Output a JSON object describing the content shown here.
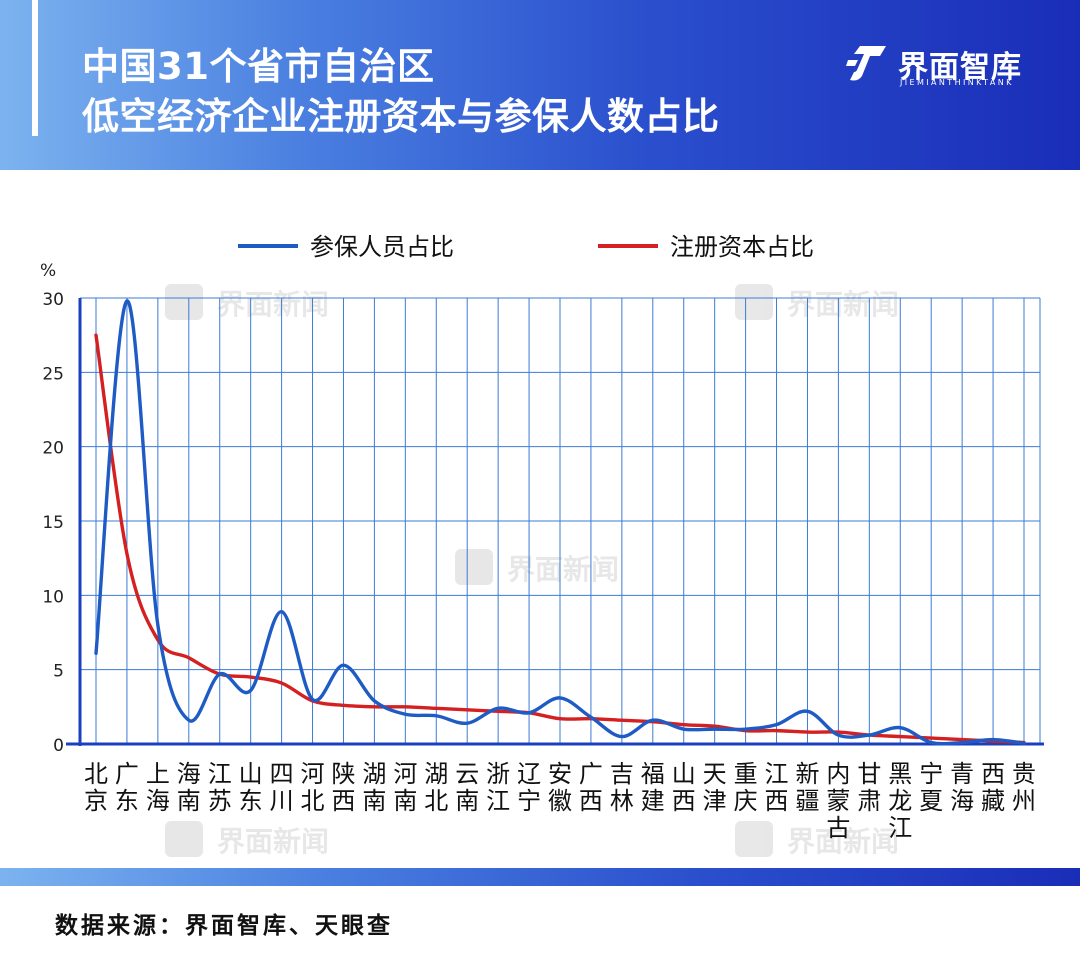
{
  "header": {
    "title_line1": "中国31个省市自治区",
    "title_line2": "低空经济企业注册资本与参保人数占比",
    "brand_name": "界面智库",
    "brand_sub": "JIEMIANTHINKTANK"
  },
  "watermark_text": "界面新闻",
  "footer": {
    "source": "数据来源：界面智库、天眼查"
  },
  "colors": {
    "header_start": "#7cb3ef",
    "header_end": "#1a2db8",
    "blue_series": "#1f5bc4",
    "red_series": "#d42020",
    "grid": "#3b7bd6"
  },
  "chart_data": {
    "type": "line",
    "unit": "%",
    "ylim": [
      0,
      30
    ],
    "yticks": [
      0,
      5,
      10,
      15,
      20,
      25,
      30
    ],
    "grid": true,
    "legend_position": "top",
    "categories": [
      [
        "北",
        "京"
      ],
      [
        "广",
        "东"
      ],
      [
        "上",
        "海"
      ],
      [
        "海",
        "南"
      ],
      [
        "江",
        "苏"
      ],
      [
        "山",
        "东"
      ],
      [
        "四",
        "川"
      ],
      [
        "河",
        "北"
      ],
      [
        "陕",
        "西"
      ],
      [
        "湖",
        "南"
      ],
      [
        "河",
        "南"
      ],
      [
        "湖",
        "北"
      ],
      [
        "云",
        "南"
      ],
      [
        "浙",
        "江"
      ],
      [
        "辽",
        "宁"
      ],
      [
        "安",
        "徽"
      ],
      [
        "广",
        "西"
      ],
      [
        "吉",
        "林"
      ],
      [
        "福",
        "建"
      ],
      [
        "山",
        "西"
      ],
      [
        "天",
        "津"
      ],
      [
        "重",
        "庆"
      ],
      [
        "江",
        "西"
      ],
      [
        "新",
        "疆"
      ],
      [
        "内",
        "蒙",
        "古"
      ],
      [
        "甘",
        "肃"
      ],
      [
        "黑",
        "龙",
        "江"
      ],
      [
        "宁",
        "夏"
      ],
      [
        "青",
        "海"
      ],
      [
        "西",
        "藏"
      ],
      [
        "贵",
        "州"
      ]
    ],
    "series": [
      {
        "name": "参保人员占比",
        "color": "#1f5bc4",
        "values": [
          6.1,
          29.8,
          8.0,
          1.6,
          4.7,
          3.6,
          8.9,
          3.0,
          5.3,
          2.9,
          2.0,
          1.9,
          1.4,
          2.4,
          2.1,
          3.1,
          1.8,
          0.5,
          1.6,
          1.0,
          1.0,
          1.0,
          1.3,
          2.2,
          0.6,
          0.6,
          1.1,
          0.1,
          0.1,
          0.3,
          0.05
        ]
      },
      {
        "name": "注册资本占比",
        "color": "#d42020",
        "values": [
          27.5,
          12.8,
          7.0,
          5.8,
          4.7,
          4.5,
          4.1,
          2.9,
          2.6,
          2.5,
          2.5,
          2.4,
          2.3,
          2.2,
          2.1,
          1.7,
          1.7,
          1.6,
          1.5,
          1.3,
          1.2,
          0.9,
          0.9,
          0.8,
          0.8,
          0.6,
          0.5,
          0.4,
          0.3,
          0.2,
          0.1
        ]
      }
    ]
  }
}
